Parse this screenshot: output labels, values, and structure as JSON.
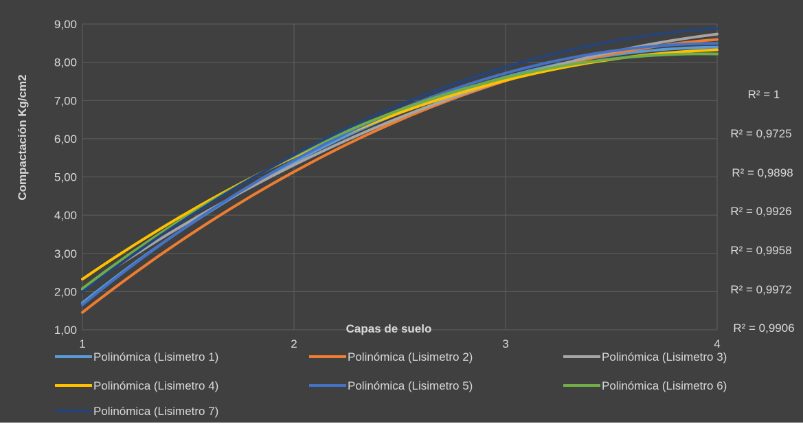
{
  "chart_data": {
    "type": "line",
    "title": "",
    "xlabel": "Capas de suelo",
    "ylabel": "Compactación Kg/cm2",
    "xlim": [
      1,
      4
    ],
    "ylim": [
      1,
      9
    ],
    "x_ticks": [
      "1",
      "2",
      "3",
      "4"
    ],
    "y_ticks": [
      "1,00",
      "2,00",
      "3,00",
      "4,00",
      "5,00",
      "6,00",
      "7,00",
      "8,00",
      "9,00"
    ],
    "grid": true,
    "legend_position": "bottom",
    "background_color": "#404040",
    "series": [
      {
        "name": "Polinómica (Lisimetro 1)",
        "color": "#5B9BD5",
        "x": [
          1,
          2,
          3,
          4
        ],
        "values": [
          1.7,
          5.4,
          7.6,
          8.4
        ]
      },
      {
        "name": "Polinómica (Lisimetro 2)",
        "color": "#ED7D31",
        "x": [
          1,
          2,
          3,
          4
        ],
        "values": [
          1.45,
          5.15,
          7.5,
          8.6
        ]
      },
      {
        "name": "Polinómica (Lisimetro 3)",
        "color": "#A5A5A5",
        "x": [
          1,
          2,
          3,
          4
        ],
        "values": [
          2.05,
          5.35,
          7.5,
          8.75
        ]
      },
      {
        "name": "Polinómica (Lisimetro 4)",
        "color": "#FFC000",
        "x": [
          1,
          2,
          3,
          4
        ],
        "values": [
          2.35,
          5.45,
          7.6,
          8.3
        ]
      },
      {
        "name": "Polinómica (Lisimetro 5)",
        "color": "#4472C4",
        "x": [
          1,
          2,
          3,
          4
        ],
        "values": [
          1.65,
          5.45,
          7.7,
          8.5
        ]
      },
      {
        "name": "Polinómica (Lisimetro 6)",
        "color": "#70AD47",
        "x": [
          1,
          2,
          3,
          4
        ],
        "values": [
          2.1,
          5.5,
          7.65,
          8.2
        ]
      },
      {
        "name": "Polinómica (Lisimetro 7)",
        "color": "#264478",
        "x": [
          1,
          2,
          3,
          4
        ],
        "values": [
          2.0,
          5.55,
          7.9,
          8.88
        ]
      }
    ],
    "annotations": [
      "R² = 1",
      "R² = 0,9725",
      "R² = 0,9898",
      "R² = 0,9926",
      "R² = 0,9958",
      "R² = 0,9972",
      "R² = 0,9906"
    ]
  }
}
